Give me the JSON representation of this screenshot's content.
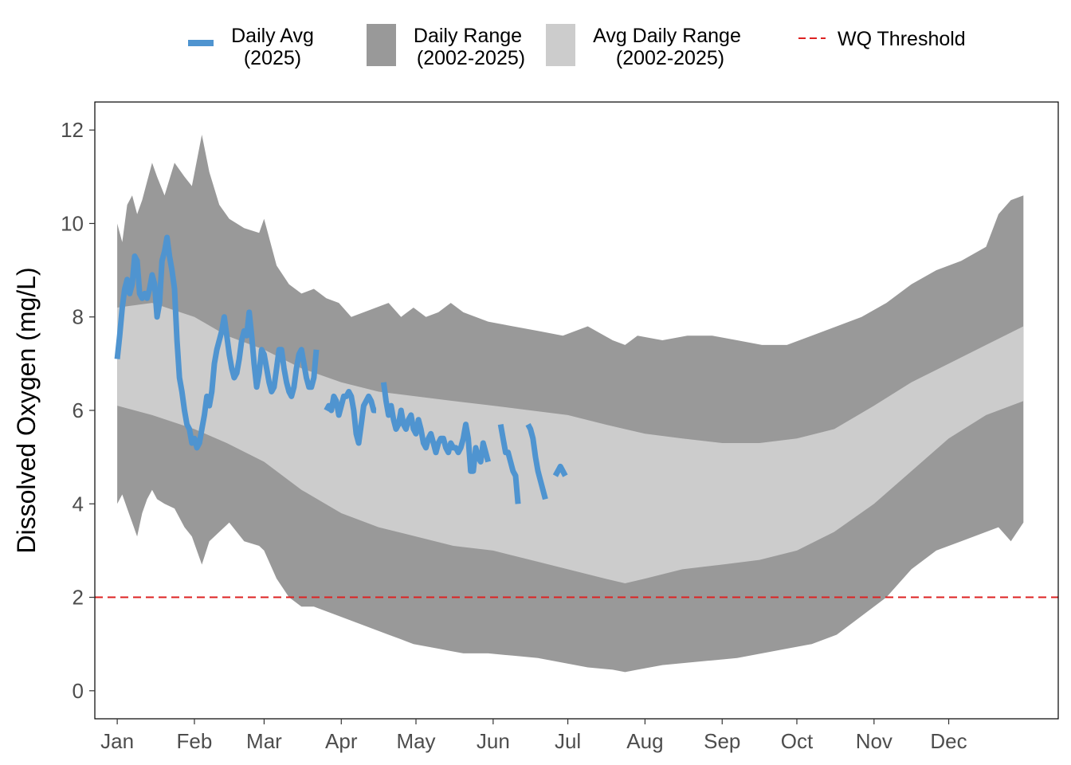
{
  "chart_data": {
    "type": "area",
    "xlabel": "",
    "ylabel": "Dissolved Oxygen (mg/L)",
    "ylim": [
      -0.6,
      12.6
    ],
    "yticks": [
      0,
      2,
      4,
      6,
      8,
      10,
      12
    ],
    "x_unit": "day of year",
    "xlim": [
      -8,
      379
    ],
    "xticks": [
      {
        "label": "Jan",
        "day": 1
      },
      {
        "label": "Feb",
        "day": 32
      },
      {
        "label": "Mar",
        "day": 60
      },
      {
        "label": "Apr",
        "day": 91
      },
      {
        "label": "May",
        "day": 121
      },
      {
        "label": "Jun",
        "day": 152
      },
      {
        "label": "Jul",
        "day": 182
      },
      {
        "label": "Aug",
        "day": 213
      },
      {
        "label": "Sep",
        "day": 244
      },
      {
        "label": "Oct",
        "day": 274
      },
      {
        "label": "Nov",
        "day": 305
      },
      {
        "label": "Dec",
        "day": 335
      }
    ],
    "grid": false,
    "legend_position": "top",
    "legend": [
      {
        "key": "daily_avg",
        "line1": "Daily Avg",
        "line2": "(2025)"
      },
      {
        "key": "daily_range",
        "line1": "Daily Range",
        "line2": "(2002-2025)"
      },
      {
        "key": "avg_range",
        "line1": "Avg Daily Range",
        "line2": "(2002-2025)"
      },
      {
        "key": "threshold",
        "line1": "WQ Threshold",
        "line2": ""
      }
    ],
    "colors": {
      "daily_avg": "#4f94d0",
      "daily_range": "#999999",
      "avg_range": "#cccccc",
      "threshold": "#dd2222"
    },
    "threshold": 2,
    "series": [
      {
        "name": "Daily Range (2002-2025)",
        "kind": "band",
        "x": [
          1,
          3,
          5,
          7,
          9,
          11,
          13,
          15,
          17,
          20,
          24,
          28,
          31,
          35,
          38,
          42,
          46,
          52,
          58,
          60,
          65,
          70,
          75,
          80,
          85,
          90,
          95,
          100,
          105,
          110,
          115,
          120,
          125,
          130,
          135,
          140,
          150,
          160,
          170,
          180,
          190,
          200,
          205,
          210,
          220,
          230,
          240,
          250,
          260,
          270,
          280,
          290,
          300,
          310,
          320,
          330,
          340,
          350,
          355,
          360,
          365
        ],
        "low": [
          4.0,
          4.2,
          3.9,
          3.6,
          3.3,
          3.8,
          4.1,
          4.3,
          4.1,
          4.0,
          3.9,
          3.5,
          3.3,
          2.7,
          3.2,
          3.4,
          3.6,
          3.2,
          3.1,
          3.0,
          2.4,
          2.0,
          1.8,
          1.8,
          1.7,
          1.6,
          1.5,
          1.4,
          1.3,
          1.2,
          1.1,
          1.0,
          0.95,
          0.9,
          0.85,
          0.8,
          0.8,
          0.75,
          0.7,
          0.6,
          0.5,
          0.45,
          0.4,
          0.45,
          0.55,
          0.6,
          0.65,
          0.7,
          0.8,
          0.9,
          1.0,
          1.2,
          1.6,
          2.0,
          2.6,
          3.0,
          3.2,
          3.4,
          3.5,
          3.2,
          3.6
        ],
        "high": [
          10.0,
          9.6,
          10.4,
          10.6,
          10.2,
          10.5,
          10.9,
          11.3,
          11.0,
          10.6,
          11.3,
          11.0,
          10.8,
          11.9,
          11.1,
          10.4,
          10.1,
          9.9,
          9.8,
          10.1,
          9.1,
          8.7,
          8.5,
          8.6,
          8.4,
          8.3,
          8.0,
          8.1,
          8.2,
          8.3,
          8.0,
          8.2,
          8.0,
          8.1,
          8.3,
          8.1,
          7.9,
          7.8,
          7.7,
          7.6,
          7.8,
          7.5,
          7.4,
          7.6,
          7.5,
          7.6,
          7.6,
          7.5,
          7.4,
          7.4,
          7.6,
          7.8,
          8.0,
          8.3,
          8.7,
          9.0,
          9.2,
          9.5,
          10.2,
          10.5,
          10.6
        ]
      },
      {
        "name": "Avg Daily Range (2002-2025)",
        "kind": "band",
        "x": [
          1,
          15,
          32,
          45,
          60,
          75,
          91,
          106,
          121,
          136,
          152,
          167,
          182,
          197,
          205,
          213,
          228,
          244,
          259,
          274,
          289,
          305,
          320,
          335,
          350,
          365
        ],
        "low": [
          6.1,
          5.9,
          5.6,
          5.3,
          4.9,
          4.3,
          3.8,
          3.5,
          3.3,
          3.1,
          3.0,
          2.8,
          2.6,
          2.4,
          2.3,
          2.4,
          2.6,
          2.7,
          2.8,
          3.0,
          3.4,
          4.0,
          4.7,
          5.4,
          5.9,
          6.2
        ],
        "high": [
          8.2,
          8.3,
          8.0,
          7.6,
          7.3,
          6.9,
          6.6,
          6.4,
          6.3,
          6.2,
          6.1,
          6.0,
          5.9,
          5.7,
          5.6,
          5.5,
          5.4,
          5.3,
          5.3,
          5.4,
          5.6,
          6.1,
          6.6,
          7.0,
          7.4,
          7.8
        ]
      },
      {
        "name": "Daily Avg (2025)",
        "kind": "line",
        "segments": [
          {
            "x": [
              1,
              2,
              3,
              4,
              5,
              6,
              7,
              8,
              9,
              10,
              11,
              12,
              13,
              14,
              15,
              16,
              17,
              18,
              19,
              20,
              21,
              22,
              23,
              24,
              25,
              26,
              27,
              28,
              29,
              30,
              31,
              32,
              33,
              34,
              35,
              36,
              37,
              38,
              39,
              40,
              41,
              42,
              43,
              44,
              45,
              46,
              47,
              48,
              49,
              50,
              51,
              52,
              53,
              54,
              55,
              56,
              57,
              58,
              59,
              60,
              61,
              62,
              63,
              64,
              65,
              66,
              67,
              68,
              69,
              70,
              71,
              72,
              73,
              74,
              75,
              76,
              77,
              78,
              79,
              80,
              81
            ],
            "y": [
              7.1,
              7.6,
              8.2,
              8.6,
              8.8,
              8.5,
              8.7,
              9.3,
              9.2,
              8.5,
              8.4,
              8.5,
              8.4,
              8.6,
              8.9,
              8.7,
              8.0,
              8.3,
              9.2,
              9.4,
              9.7,
              9.3,
              9.0,
              8.6,
              7.5,
              6.7,
              6.4,
              6.0,
              5.7,
              5.6,
              5.3,
              5.4,
              5.2,
              5.3,
              5.6,
              5.9,
              6.3,
              6.1,
              6.4,
              7.0,
              7.3,
              7.5,
              7.7,
              8.0,
              7.6,
              7.2,
              6.9,
              6.7,
              6.8,
              7.1,
              7.5,
              7.7,
              7.6,
              8.1,
              7.6,
              7.0,
              6.5,
              6.8,
              7.3,
              7.2,
              6.9,
              6.6,
              6.4,
              6.5,
              6.9,
              7.3,
              7.3,
              6.9,
              6.6,
              6.4,
              6.3,
              6.5,
              6.9,
              7.2,
              7.3,
              7.0,
              6.7,
              6.5,
              6.5,
              6.7,
              7.3
            ]
          },
          {
            "x": [
              85,
              86,
              87,
              88,
              89,
              90,
              91,
              92,
              93,
              94,
              95,
              96,
              97,
              98,
              99,
              100,
              101,
              102,
              103,
              104,
              105
            ],
            "y": [
              6.0,
              6.1,
              6.0,
              6.3,
              6.2,
              5.9,
              6.1,
              6.3,
              6.3,
              6.4,
              6.3,
              6.0,
              5.5,
              5.3,
              5.7,
              6.1,
              6.2,
              6.3,
              6.2,
              6.0,
              6.0
            ]
          },
          {
            "x": [
              108,
              109,
              110,
              111,
              112,
              113,
              114,
              115,
              116,
              117,
              118,
              119,
              120,
              121,
              122,
              123,
              124,
              125,
              126,
              127,
              128,
              129,
              130,
              131,
              132,
              133,
              134,
              135,
              136,
              137,
              138,
              139,
              140,
              141,
              142,
              143,
              144,
              145,
              146,
              147,
              148,
              149,
              150
            ],
            "y": [
              6.6,
              6.2,
              5.9,
              6.1,
              5.8,
              5.6,
              5.7,
              6.0,
              5.7,
              5.6,
              5.8,
              5.9,
              5.6,
              5.5,
              5.8,
              5.6,
              5.3,
              5.2,
              5.4,
              5.5,
              5.3,
              5.1,
              5.3,
              5.4,
              5.4,
              5.2,
              5.1,
              5.3,
              5.2,
              5.2,
              5.1,
              5.2,
              5.4,
              5.7,
              5.4,
              4.7,
              4.7,
              5.2,
              5.0,
              4.9,
              5.3,
              5.1,
              4.9
            ]
          },
          {
            "x": [
              155,
              156,
              157,
              158,
              159,
              160,
              161,
              162
            ],
            "y": [
              5.7,
              5.4,
              5.1,
              5.1,
              4.9,
              4.7,
              4.6,
              4.0
            ]
          },
          {
            "x": [
              166,
              167,
              168,
              169,
              170,
              171,
              172,
              173
            ],
            "y": [
              5.7,
              5.6,
              5.4,
              5.0,
              4.7,
              4.5,
              4.3,
              4.1
            ]
          },
          {
            "x": [
              177,
              178,
              179,
              180,
              181
            ],
            "y": [
              4.6,
              4.7,
              4.8,
              4.7,
              4.6
            ]
          }
        ]
      }
    ]
  }
}
